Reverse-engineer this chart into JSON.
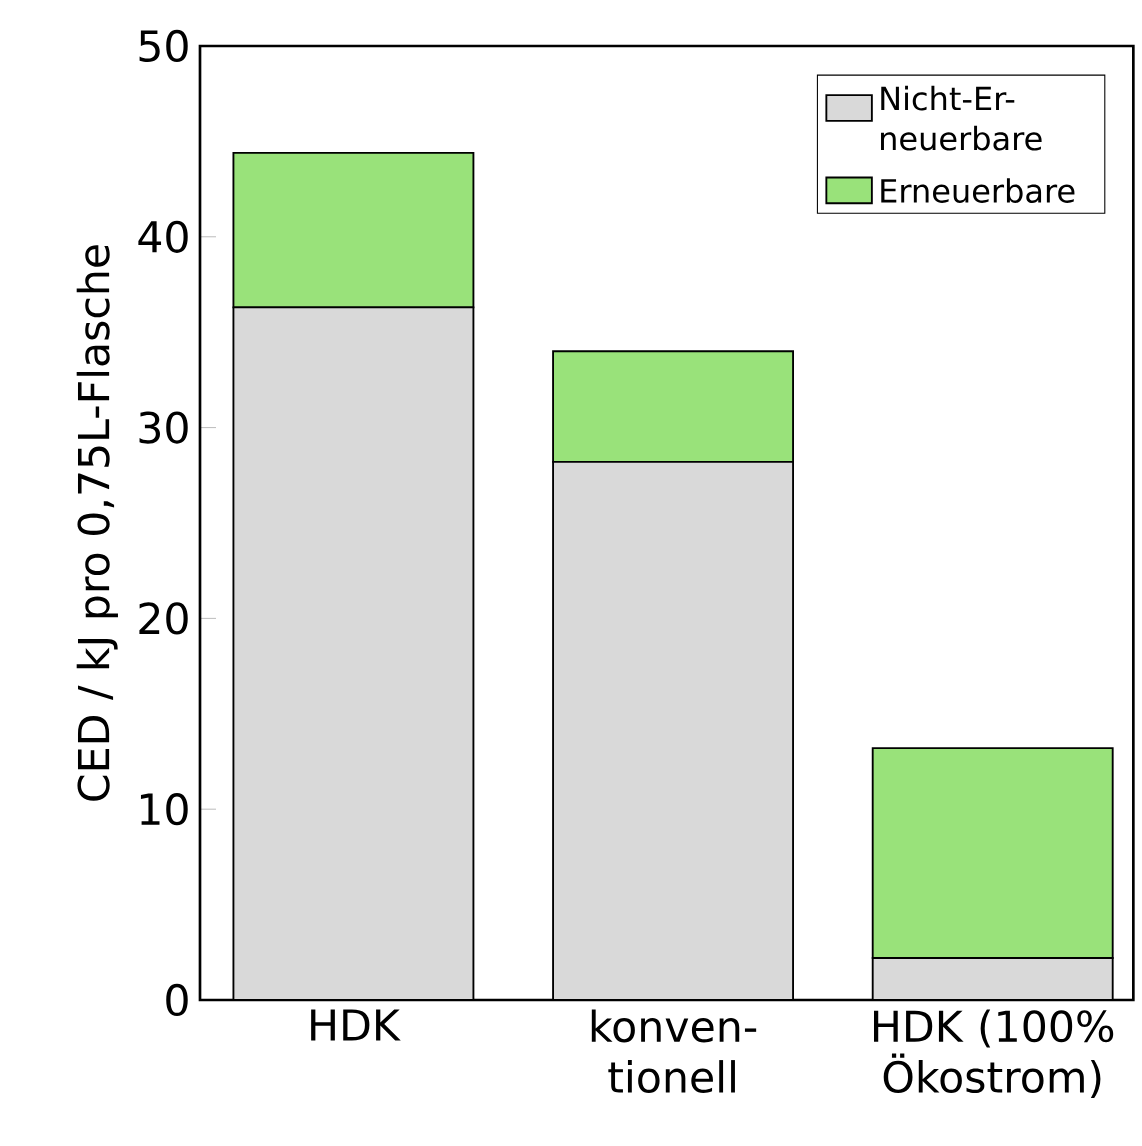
{
  "chart_data": {
    "type": "bar",
    "stacked": true,
    "ylabel": "CED / kJ pro 0,75L-Flasche",
    "categories": [
      "HDK",
      "konven-tionell",
      "HDK (100% Ökostrom)"
    ],
    "series": [
      {
        "name": "Nicht-Er-neuerbare",
        "color": "#d9d9d9",
        "values": [
          36.3,
          28.2,
          2.2
        ]
      },
      {
        "name": "Erneuerbare",
        "color": "#99e27a",
        "values": [
          8.1,
          5.8,
          11.0
        ]
      }
    ],
    "ylim": [
      0,
      50
    ],
    "yticks": [
      0,
      10,
      20,
      30,
      40,
      50
    ],
    "legend": "top right",
    "grid": false
  }
}
